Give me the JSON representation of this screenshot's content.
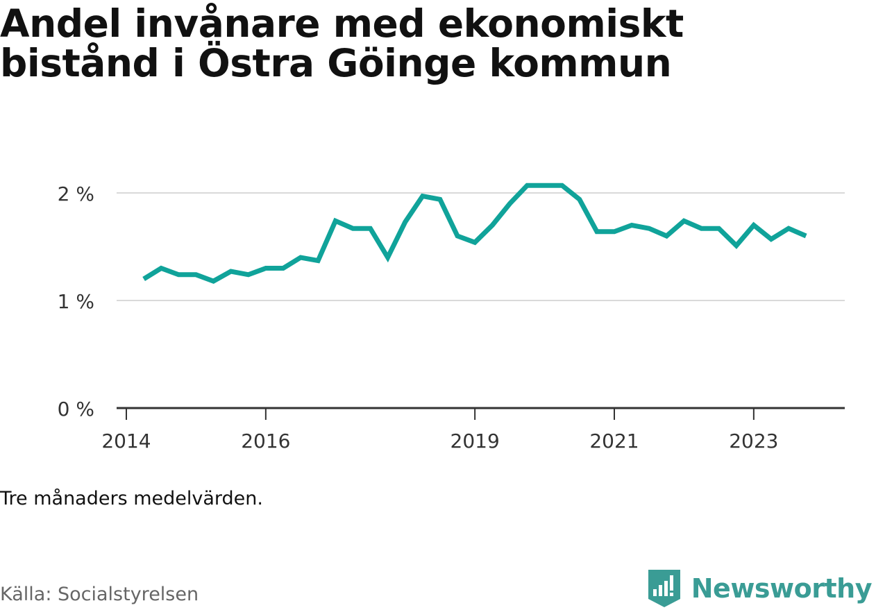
{
  "title_lines": [
    "Andel invånare med ekonomiskt",
    "bistånd i Östra Göinge kommun"
  ],
  "note": "Tre månaders medelvärden.",
  "source": "Källa: Socialstyrelsen",
  "brand": {
    "name": "Newsworthy",
    "icon": "newsworthy-logo-icon",
    "color": "#3a9c95"
  },
  "chart_data": {
    "type": "line",
    "ylim": [
      0,
      2.2
    ],
    "y_ticks": [
      {
        "value": 0,
        "label": "0 %"
      },
      {
        "value": 1,
        "label": "1 %"
      },
      {
        "value": 2,
        "label": "2 %"
      }
    ],
    "x_ticks": [
      {
        "value": "2014-01",
        "label": "2014"
      },
      {
        "value": "2016-01",
        "label": "2016"
      },
      {
        "value": "2019-01",
        "label": "2019"
      },
      {
        "value": "2021-01",
        "label": "2021"
      },
      {
        "value": "2023-01",
        "label": "2023"
      }
    ],
    "grid": true,
    "series": [
      {
        "color": "#10a39a",
        "points": [
          [
            "2014-04",
            1.2
          ],
          [
            "2014-07",
            1.3
          ],
          [
            "2014-10",
            1.24
          ],
          [
            "2015-01",
            1.24
          ],
          [
            "2015-04",
            1.18
          ],
          [
            "2015-07",
            1.27
          ],
          [
            "2015-10",
            1.24
          ],
          [
            "2016-01",
            1.3
          ],
          [
            "2016-04",
            1.3
          ],
          [
            "2016-07",
            1.4
          ],
          [
            "2016-10",
            1.37
          ],
          [
            "2017-01",
            1.74
          ],
          [
            "2017-04",
            1.67
          ],
          [
            "2017-07",
            1.67
          ],
          [
            "2017-10",
            1.4
          ],
          [
            "2018-01",
            1.73
          ],
          [
            "2018-04",
            1.97
          ],
          [
            "2018-07",
            1.94
          ],
          [
            "2018-10",
            1.6
          ],
          [
            "2019-01",
            1.54
          ],
          [
            "2019-04",
            1.7
          ],
          [
            "2019-07",
            1.9
          ],
          [
            "2019-10",
            2.07
          ],
          [
            "2020-01",
            2.07
          ],
          [
            "2020-04",
            2.07
          ],
          [
            "2020-07",
            1.94
          ],
          [
            "2020-10",
            1.64
          ],
          [
            "2021-01",
            1.64
          ],
          [
            "2021-04",
            1.7
          ],
          [
            "2021-07",
            1.67
          ],
          [
            "2021-10",
            1.6
          ],
          [
            "2022-01",
            1.74
          ],
          [
            "2022-04",
            1.67
          ],
          [
            "2022-07",
            1.67
          ],
          [
            "2022-10",
            1.51
          ],
          [
            "2023-01",
            1.7
          ],
          [
            "2023-04",
            1.57
          ],
          [
            "2023-07",
            1.67
          ],
          [
            "2023-10",
            1.6
          ]
        ]
      }
    ]
  }
}
